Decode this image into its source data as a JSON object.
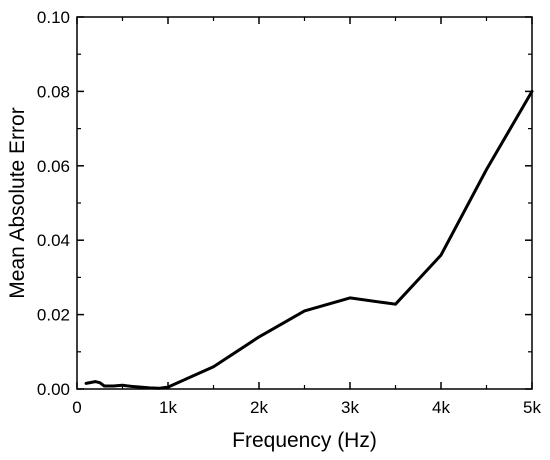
{
  "chart_data": {
    "type": "line",
    "title": "",
    "xlabel": "Frequency (Hz)",
    "ylabel": "Mean Absolute Error",
    "xlim": [
      0,
      5000
    ],
    "ylim": [
      0,
      0.1
    ],
    "grid": false,
    "x_ticks": [
      {
        "value": 0,
        "label": "0"
      },
      {
        "value": 1000,
        "label": "1k"
      },
      {
        "value": 2000,
        "label": "2k"
      },
      {
        "value": 3000,
        "label": "3k"
      },
      {
        "value": 4000,
        "label": "4k"
      },
      {
        "value": 5000,
        "label": "5k"
      }
    ],
    "y_ticks": [
      {
        "value": 0,
        "label": "0.00"
      },
      {
        "value": 0.02,
        "label": "0.02"
      },
      {
        "value": 0.04,
        "label": "0.04"
      },
      {
        "value": 0.06,
        "label": "0.06"
      },
      {
        "value": 0.08,
        "label": "0.08"
      },
      {
        "value": 0.1,
        "label": "0.10"
      }
    ],
    "series": [
      {
        "color": "#000000",
        "x": [
          100,
          200,
          250,
          300,
          400,
          500,
          600,
          700,
          800,
          900,
          1000,
          1500,
          2000,
          2500,
          3000,
          3500,
          4000,
          4500,
          5000
        ],
        "y": [
          0.0015,
          0.002,
          0.0017,
          0.0008,
          0.0008,
          0.001,
          0.0007,
          0.0005,
          0.0003,
          0.0002,
          0.0005,
          0.006,
          0.014,
          0.021,
          0.0245,
          0.0228,
          0.036,
          0.059,
          0.08
        ]
      }
    ]
  }
}
